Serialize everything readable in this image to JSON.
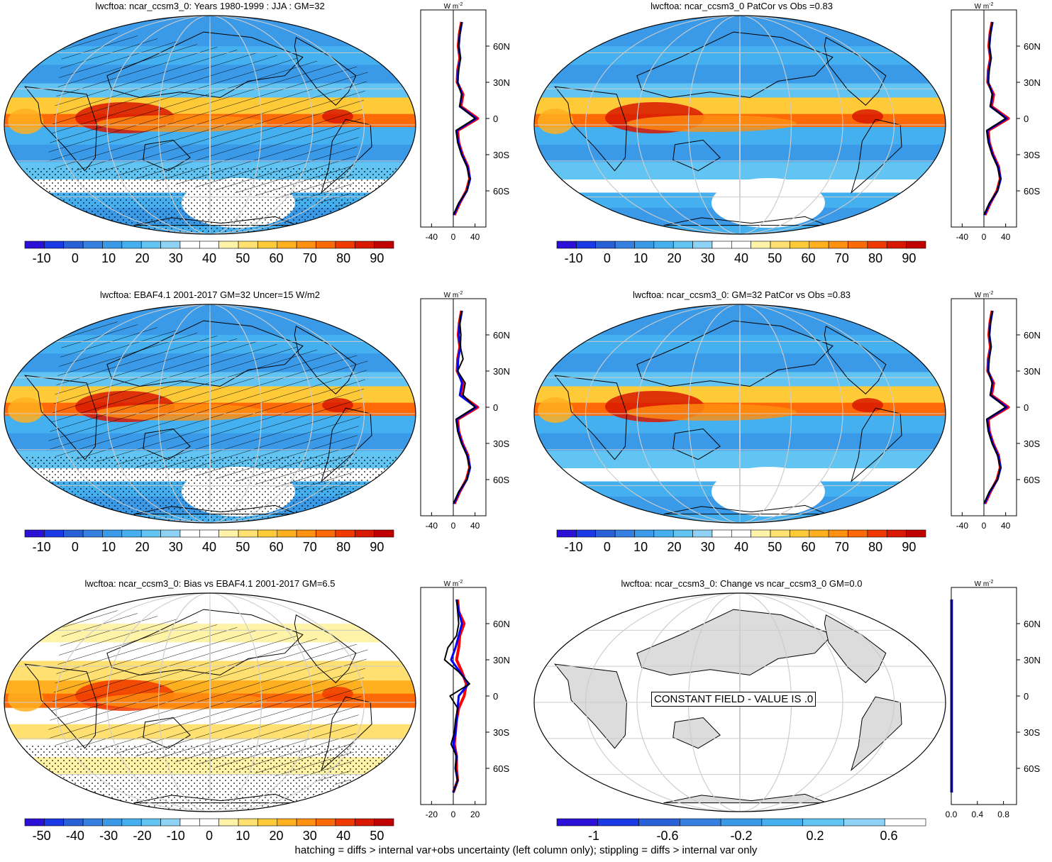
{
  "panels": [
    {
      "id": "p1",
      "title": "lwcftoa: ncar_ccsm3_0: Years 1980-1999 : JJA : GM=32",
      "kind": "mean",
      "hatch": true,
      "colorbar": {
        "labels": [
          "-10",
          "0",
          "10",
          "20",
          "30",
          "40",
          "50",
          "60",
          "70",
          "80",
          "90"
        ]
      },
      "profile": {
        "xticks": [
          "-40",
          "0",
          "40"
        ],
        "xmin": -60,
        "xmax": 60
      }
    },
    {
      "id": "p2",
      "title": "lwcftoa: ncar_ccsm3_0 PatCor vs Obs =0.83",
      "kind": "mean",
      "hatch": false,
      "colorbar": {
        "labels": [
          "-10",
          "0",
          "10",
          "20",
          "30",
          "40",
          "50",
          "60",
          "70",
          "80",
          "90"
        ]
      },
      "profile": {
        "xticks": [
          "-40",
          "0",
          "40"
        ],
        "xmin": -60,
        "xmax": 60
      }
    },
    {
      "id": "p3",
      "title": "lwcftoa: EBAF4.1 2001-2017 GM=32 Uncer=15 W/m2",
      "kind": "mean",
      "hatch": true,
      "colorbar": {
        "labels": [
          "-10",
          "0",
          "10",
          "20",
          "30",
          "40",
          "50",
          "60",
          "70",
          "80",
          "90"
        ]
      },
      "profile": {
        "xticks": [
          "-40",
          "0",
          "40"
        ],
        "xmin": -60,
        "xmax": 60
      }
    },
    {
      "id": "p4",
      "title": "lwcftoa: ncar_ccsm3_0: GM=32 PatCor vs Obs =0.83",
      "kind": "mean",
      "hatch": false,
      "colorbar": {
        "labels": [
          "-10",
          "0",
          "10",
          "20",
          "30",
          "40",
          "50",
          "60",
          "70",
          "80",
          "90"
        ]
      },
      "profile": {
        "xticks": [
          "-40",
          "0",
          "40"
        ],
        "xmin": -60,
        "xmax": 60
      }
    },
    {
      "id": "p5",
      "title": "lwcftoa: ncar_ccsm3_0: Bias vs EBAF4.1 2001-2017 GM=6.5",
      "kind": "bias",
      "hatch": true,
      "colorbar": {
        "labels": [
          "-50",
          "-40",
          "-30",
          "-20",
          "-10",
          "0",
          "10",
          "20",
          "30",
          "40",
          "50"
        ]
      },
      "profile": {
        "xticks": [
          "-20",
          "0",
          "20"
        ],
        "xmin": -30,
        "xmax": 30
      }
    },
    {
      "id": "p6",
      "title": "lwcftoa: ncar_ccsm3_0: Change vs ncar_ccsm3_0 GM=0.0",
      "kind": "change",
      "hatch": false,
      "constant_label": "CONSTANT FIELD - VALUE IS .0",
      "colorbar": {
        "labels": [
          "-1",
          "-0.6",
          "-0.2",
          "0.2",
          "0.6"
        ]
      },
      "profile": {
        "xticks": [
          "0.0",
          "0.4",
          "0.8"
        ],
        "xmin": 0,
        "xmax": 1
      }
    }
  ],
  "profile_units": "W m",
  "profile_units_exp": "-2",
  "lat_labels": [
    "60N",
    "30N",
    "0",
    "30S",
    "60S"
  ],
  "footer": "hatching = diffs > internal var+obs uncertainty (left column only); stippling = diffs > internal var only",
  "colors": {
    "mean_palette": [
      "#2c10d8",
      "#1a3ae6",
      "#2860d8",
      "#3580e0",
      "#3a9ae8",
      "#45b0f0",
      "#62c4f2",
      "#8ed2f5",
      "#ffffff",
      "#ffffff",
      "#fff3a8",
      "#ffe070",
      "#ffca38",
      "#ffb020",
      "#ff9010",
      "#ff6a08",
      "#f03a00",
      "#d81800",
      "#c00000"
    ],
    "bias_palette": [
      "#2c10d8",
      "#1a3ae6",
      "#2860d8",
      "#3580e0",
      "#3a9ae8",
      "#45b0f0",
      "#62c4f2",
      "#8ed2f5",
      "#ffffff",
      "#ffffff",
      "#fff3a8",
      "#ffe070",
      "#ffca38",
      "#ffb020",
      "#ff9010",
      "#ff6a08",
      "#f03a00",
      "#d81800",
      "#c00000"
    ],
    "change_palette": [
      "#2c10d8",
      "#1a3ae6",
      "#2860d8",
      "#3580e0",
      "#3a9ae8",
      "#45b0f0",
      "#62c4f2",
      "#8ed2f5",
      "#ffffff"
    ],
    "profile_red": "#ff0000",
    "profile_blue": "#0000ff",
    "profile_black": "#000000",
    "land_gray": "#dcdcdc"
  },
  "chart_data": [
    {
      "type": "heatmap",
      "title": "lwcftoa: ncar_ccsm3_0: Years 1980-1999 : JJA : GM=32",
      "units": "W m-2",
      "range": [
        -15,
        95
      ],
      "profile": {
        "lat": [
          80,
          70,
          60,
          50,
          40,
          30,
          20,
          10,
          0,
          -10,
          -20,
          -30,
          -40,
          -50,
          -60,
          -70,
          -80
        ],
        "model": [
          15,
          12,
          10,
          13,
          10,
          8,
          15,
          12,
          40,
          5,
          8,
          15,
          25,
          30,
          25,
          10,
          0
        ],
        "obs": [
          15,
          11,
          9,
          12,
          8,
          7,
          18,
          14,
          45,
          8,
          10,
          17,
          27,
          30,
          24,
          12,
          2
        ],
        "obs2": [
          16,
          12,
          10,
          13,
          9,
          8,
          16,
          12,
          42,
          6,
          9,
          16,
          26,
          31,
          25,
          11,
          1
        ]
      }
    },
    {
      "type": "heatmap",
      "title": "lwcftoa: ncar_ccsm3_0 PatCor vs Obs =0.83",
      "units": "W m-2",
      "range": [
        -15,
        95
      ],
      "profile": {
        "lat": [
          80,
          70,
          60,
          50,
          40,
          30,
          20,
          10,
          0,
          -10,
          -20,
          -30,
          -40,
          -50,
          -60,
          -70,
          -80
        ],
        "model": [
          15,
          12,
          10,
          13,
          10,
          8,
          15,
          12,
          40,
          5,
          8,
          15,
          25,
          30,
          25,
          10,
          0
        ],
        "obs": [
          15,
          11,
          9,
          12,
          8,
          7,
          18,
          14,
          45,
          8,
          10,
          17,
          27,
          30,
          24,
          12,
          2
        ],
        "obs2": [
          16,
          12,
          10,
          13,
          9,
          8,
          16,
          12,
          42,
          6,
          9,
          16,
          26,
          31,
          25,
          11,
          1
        ]
      }
    },
    {
      "type": "heatmap",
      "title": "lwcftoa: EBAF4.1 2001-2017 GM=32 Uncer=15 W/m2",
      "units": "W m-2",
      "range": [
        -15,
        95
      ],
      "profile": {
        "lat": [
          80,
          70,
          60,
          50,
          40,
          30,
          20,
          10,
          0,
          -10,
          -20,
          -30,
          -40,
          -50,
          -60,
          -70,
          -80
        ],
        "model": [
          15,
          12,
          14,
          13,
          18,
          8,
          22,
          18,
          40,
          5,
          8,
          15,
          25,
          30,
          25,
          10,
          0
        ],
        "obs": [
          15,
          11,
          9,
          12,
          8,
          7,
          18,
          14,
          45,
          8,
          10,
          17,
          27,
          30,
          24,
          12,
          2
        ],
        "obs2": [
          16,
          12,
          10,
          13,
          9,
          8,
          16,
          12,
          42,
          6,
          9,
          16,
          26,
          31,
          25,
          11,
          1
        ]
      }
    },
    {
      "type": "heatmap",
      "title": "lwcftoa: ncar_ccsm3_0: GM=32 PatCor vs Obs =0.83",
      "units": "W m-2",
      "range": [
        -15,
        95
      ],
      "profile": {
        "lat": [
          80,
          70,
          60,
          50,
          40,
          30,
          20,
          10,
          0,
          -10,
          -20,
          -30,
          -40,
          -50,
          -60,
          -70,
          -80
        ],
        "model": [
          15,
          12,
          10,
          13,
          10,
          8,
          15,
          12,
          40,
          5,
          8,
          15,
          25,
          30,
          25,
          10,
          0
        ],
        "obs": [
          15,
          11,
          9,
          12,
          8,
          7,
          18,
          14,
          45,
          8,
          10,
          17,
          27,
          30,
          24,
          12,
          2
        ],
        "obs2": [
          16,
          12,
          10,
          13,
          9,
          8,
          16,
          12,
          42,
          6,
          9,
          16,
          26,
          31,
          25,
          11,
          1
        ]
      }
    },
    {
      "type": "heatmap",
      "title": "lwcftoa: ncar_ccsm3_0: Bias vs EBAF4.1 2001-2017 GM=6.5",
      "units": "W m-2",
      "range": [
        -55,
        55
      ],
      "profile": {
        "lat": [
          80,
          70,
          60,
          50,
          40,
          30,
          20,
          10,
          0,
          -10,
          -20,
          -30,
          -40,
          -50,
          -60,
          -70,
          -80
        ],
        "model": [
          3,
          4,
          5,
          3,
          -5,
          -8,
          5,
          15,
          -3,
          4,
          2,
          1,
          -2,
          3,
          2,
          4,
          0
        ],
        "obs": [
          4,
          5,
          10,
          6,
          5,
          3,
          8,
          12,
          10,
          5,
          3,
          2,
          1,
          3,
          3,
          4,
          0
        ],
        "obs2": [
          3,
          5,
          8,
          5,
          2,
          -2,
          6,
          14,
          5,
          4,
          3,
          2,
          0,
          3,
          2,
          4,
          0
        ]
      }
    },
    {
      "type": "heatmap",
      "title": "lwcftoa: ncar_ccsm3_0: Change vs ncar_ccsm3_0 GM=0.0",
      "units": "W m-2",
      "range": [
        -1,
        1
      ],
      "annotation": "CONSTANT FIELD - VALUE IS .0",
      "profile": {
        "lat": [
          80,
          70,
          60,
          50,
          40,
          30,
          20,
          10,
          0,
          -10,
          -20,
          -30,
          -40,
          -50,
          -60,
          -70,
          -80
        ],
        "model": [
          0,
          0,
          0,
          0,
          0,
          0,
          0,
          0,
          0,
          0,
          0,
          0,
          0,
          0,
          0,
          0,
          0
        ],
        "obs": [
          0,
          0,
          0,
          0,
          0,
          0,
          0,
          0,
          0,
          0,
          0,
          0,
          0,
          0,
          0,
          0,
          0
        ],
        "obs2": [
          0,
          0,
          0,
          0,
          0,
          0,
          0,
          0,
          0,
          0,
          0,
          0,
          0,
          0,
          0,
          0,
          0
        ]
      }
    }
  ]
}
